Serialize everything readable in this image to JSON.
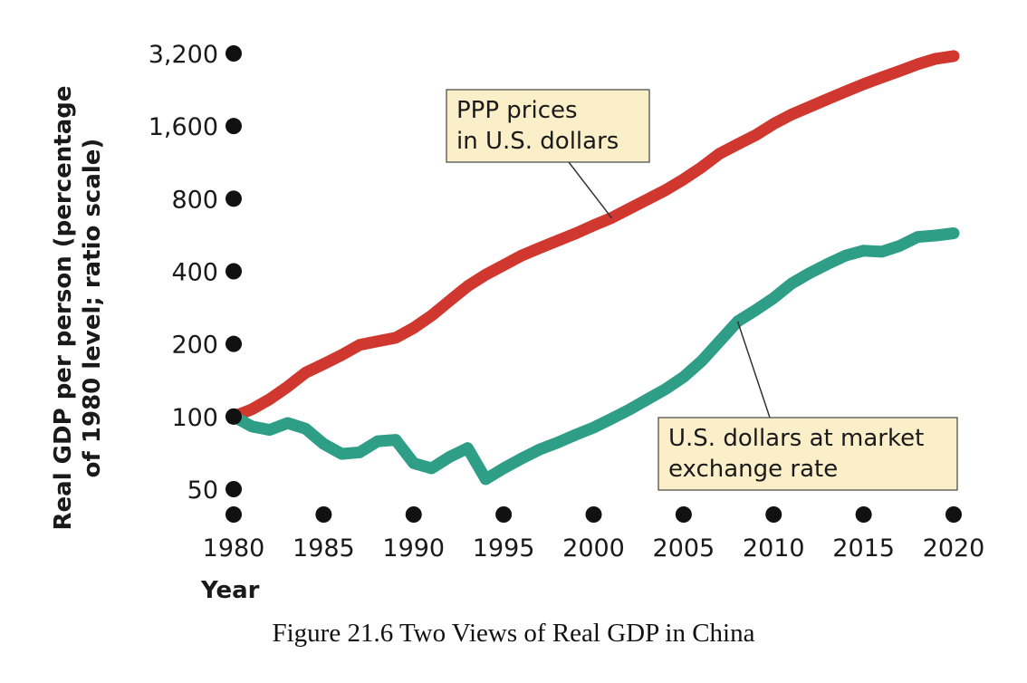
{
  "caption": "Figure 21.6 Two Views of Real GDP in China",
  "chart_data": {
    "type": "line",
    "xlabel": "Year",
    "ylabel": [
      "Real GDP per person (percentage",
      "of 1980 level; ratio scale)"
    ],
    "yscale": "log",
    "xlim": [
      1980,
      2020
    ],
    "ylim": [
      50,
      3200
    ],
    "x_ticks": [
      1980,
      1985,
      1990,
      1995,
      2000,
      2005,
      2010,
      2015,
      2020
    ],
    "x_tick_labels": [
      "1980",
      "1985",
      "1990",
      "1995",
      "2000",
      "2005",
      "2010",
      "2015",
      "2020"
    ],
    "y_ticks": [
      50,
      100,
      200,
      400,
      800,
      1600,
      3200
    ],
    "y_tick_labels": [
      "50",
      "100",
      "200",
      "400",
      "800",
      "1,600",
      "3,200"
    ],
    "grid": false,
    "series": [
      {
        "color": "#d0382f",
        "x": [
          1980,
          1981,
          1982,
          1983,
          1984,
          1985,
          1986,
          1987,
          1988,
          1989,
          1990,
          1991,
          1992,
          1993,
          1994,
          1995,
          1996,
          1997,
          1998,
          1999,
          2000,
          2001,
          2002,
          2003,
          2004,
          2005,
          2006,
          2007,
          2008,
          2009,
          2010,
          2011,
          2012,
          2013,
          2014,
          2015,
          2016,
          2017,
          2018,
          2019,
          2020
        ],
        "y": [
          100,
          107,
          118,
          133,
          152,
          165,
          180,
          198,
          205,
          212,
          233,
          262,
          302,
          347,
          387,
          424,
          465,
          500,
          536,
          574,
          620,
          666,
          728,
          795,
          869,
          963,
          1080,
          1230,
          1346,
          1467,
          1635,
          1787,
          1923,
          2069,
          2226,
          2387,
          2545,
          2707,
          2886,
          3040,
          3120
        ]
      },
      {
        "color": "#2e9e86",
        "x": [
          1980,
          1981,
          1982,
          1983,
          1984,
          1985,
          1986,
          1987,
          1988,
          1989,
          1990,
          1991,
          1992,
          1993,
          1994,
          1995,
          1996,
          1997,
          1998,
          1999,
          2000,
          2001,
          2002,
          2003,
          2004,
          2005,
          2006,
          2007,
          2008,
          2009,
          2010,
          2011,
          2012,
          2013,
          2014,
          2015,
          2016,
          2017,
          2018,
          2019,
          2020
        ],
        "y": [
          100,
          91,
          88,
          94,
          89,
          77,
          70,
          71,
          79,
          80,
          64,
          61,
          68,
          74,
          55,
          61,
          67,
          73,
          78,
          84,
          90,
          98,
          107,
          118,
          130,
          146,
          170,
          205,
          248,
          276,
          310,
          356,
          393,
          429,
          465,
          487,
          482,
          510,
          555,
          563,
          575
        ]
      }
    ],
    "annotations": [
      {
        "lines": [
          "PPP prices",
          "in U.S. dollars"
        ],
        "series_index": 0,
        "point_year": 2001
      },
      {
        "lines": [
          "U.S. dollars at market",
          "exchange rate"
        ],
        "series_index": 1,
        "point_year": 2008
      }
    ]
  }
}
